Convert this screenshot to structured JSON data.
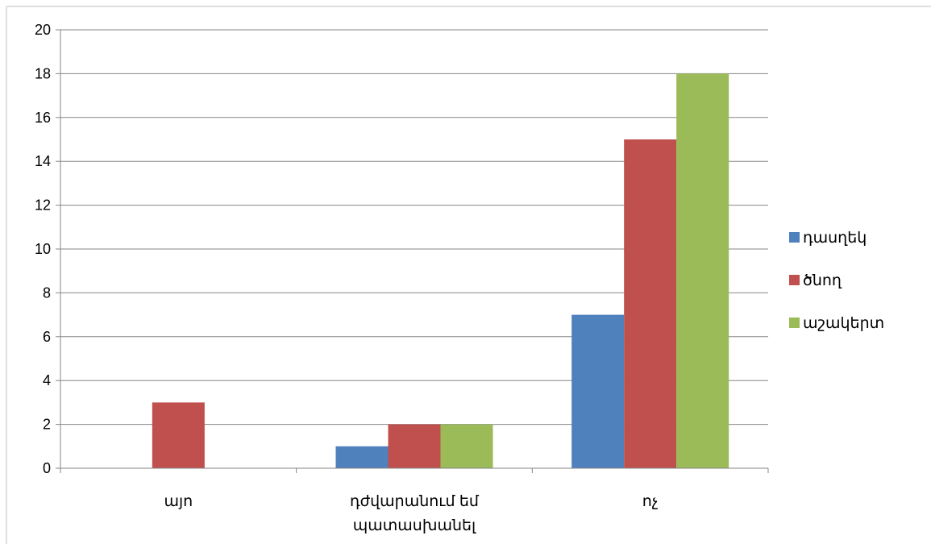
{
  "chart_data": {
    "type": "bar",
    "categories": [
      [
        "այո"
      ],
      [
        "դժվարանում եմ",
        "պատասխանել"
      ],
      [
        "ոչ"
      ]
    ],
    "series": [
      {
        "name": "դասղեկ",
        "values": [
          0,
          1,
          7
        ],
        "color": "#4f81bd"
      },
      {
        "name": "ծնող",
        "values": [
          3,
          2,
          15
        ],
        "color": "#c0504d"
      },
      {
        "name": "աշակերտ",
        "values": [
          0,
          2,
          18
        ],
        "color": "#9bbb59"
      }
    ],
    "ylim": [
      0,
      20
    ],
    "yticks": [
      0,
      2,
      4,
      6,
      8,
      10,
      12,
      14,
      16,
      18,
      20
    ],
    "grid": true,
    "legend_position": "right",
    "title": "",
    "xlabel": "",
    "ylabel": ""
  }
}
